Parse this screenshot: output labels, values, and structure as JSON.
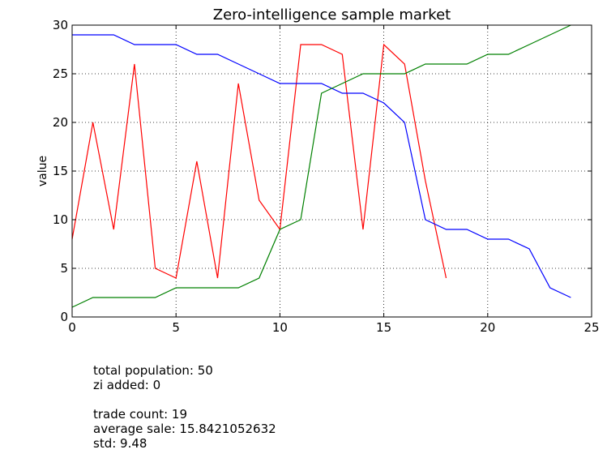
{
  "chart_data": {
    "type": "line",
    "title": "Zero-intelligence sample market",
    "xlabel": "",
    "ylabel": "value",
    "xlim": [
      0,
      25
    ],
    "ylim": [
      0,
      30
    ],
    "x_ticks": [
      0,
      5,
      10,
      15,
      20,
      25
    ],
    "y_ticks": [
      0,
      5,
      10,
      15,
      20,
      25,
      30
    ],
    "grid": true,
    "series": [
      {
        "color": "#ff0000",
        "x": [
          0,
          1,
          2,
          3,
          4,
          5,
          6,
          7,
          8,
          9,
          10,
          11,
          12,
          13,
          14,
          15,
          16,
          17,
          18
        ],
        "y": [
          8,
          20,
          9,
          26,
          5,
          4,
          16,
          4,
          24,
          12,
          9,
          28,
          28,
          27,
          9,
          28,
          26,
          14,
          4
        ]
      },
      {
        "color": "#0000ff",
        "x": [
          0,
          1,
          2,
          3,
          4,
          5,
          6,
          7,
          8,
          9,
          10,
          11,
          12,
          13,
          14,
          15,
          16,
          17,
          18,
          19,
          20,
          21,
          22,
          23,
          24
        ],
        "y": [
          29,
          29,
          29,
          28,
          28,
          28,
          27,
          27,
          26,
          25,
          24,
          24,
          24,
          23,
          23,
          22,
          20,
          10,
          9,
          9,
          8,
          8,
          7,
          3,
          2
        ]
      },
      {
        "color": "#008000",
        "x": [
          0,
          1,
          2,
          3,
          4,
          5,
          6,
          7,
          8,
          9,
          10,
          11,
          12,
          13,
          14,
          15,
          16,
          17,
          18,
          19,
          20,
          21,
          22,
          23,
          24
        ],
        "y": [
          1,
          2,
          2,
          2,
          2,
          3,
          3,
          3,
          3,
          4,
          9,
          10,
          23,
          24,
          25,
          25,
          25,
          26,
          26,
          26,
          27,
          27,
          28,
          29,
          30
        ]
      }
    ]
  },
  "stats": {
    "population": "total population: 50",
    "zi_added": "zi added: 0",
    "trade_count": "trade count: 19",
    "average_sale": "average sale: 15.8421052632",
    "std": "std: 9.48"
  }
}
